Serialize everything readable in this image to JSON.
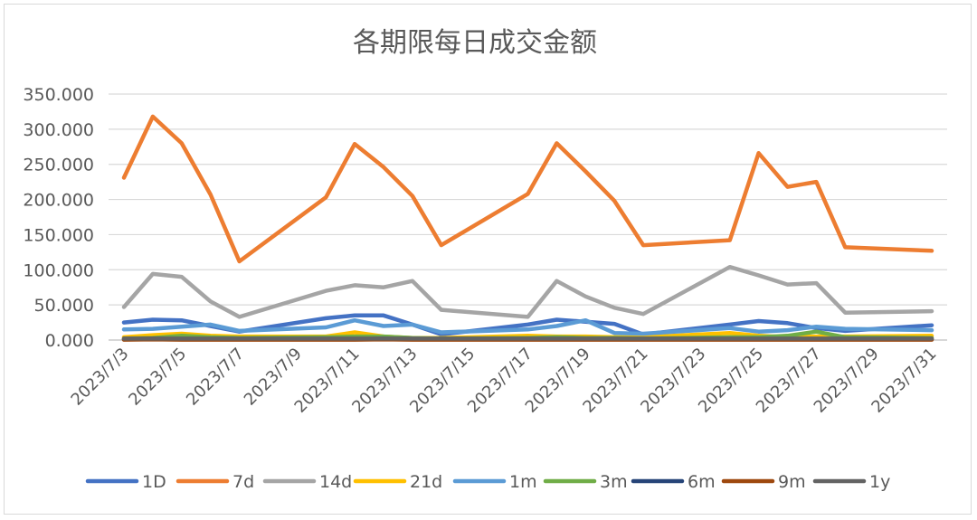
{
  "chart_data": {
    "type": "line",
    "title": "各期限每日成交金额",
    "xlabel": "",
    "ylabel": "",
    "ylim": [
      0,
      350
    ],
    "yticks": [
      0,
      50,
      100,
      150,
      200,
      250,
      300,
      350
    ],
    "ytick_labels": [
      "0.000",
      "50.000",
      "100.000",
      "150.000",
      "200.000",
      "250.000",
      "300.000",
      "350.000"
    ],
    "x": [
      "2023/7/3",
      "2023/7/4",
      "2023/7/5",
      "2023/7/6",
      "2023/7/7",
      "2023/7/10",
      "2023/7/11",
      "2023/7/12",
      "2023/7/13",
      "2023/7/14",
      "2023/7/17",
      "2023/7/18",
      "2023/7/19",
      "2023/7/20",
      "2023/7/21",
      "2023/7/24",
      "2023/7/25",
      "2023/7/26",
      "2023/7/27",
      "2023/7/28",
      "2023/7/31"
    ],
    "xtick_labels": [
      "2023/7/3",
      "2023/7/5",
      "2023/7/7",
      "2023/7/9",
      "2023/7/11",
      "2023/7/13",
      "2023/7/15",
      "2023/7/17",
      "2023/7/19",
      "2023/7/21",
      "2023/7/23",
      "2023/7/25",
      "2023/7/27",
      "2023/7/29",
      "2023/7/31"
    ],
    "legend_position": "bottom",
    "grid": true,
    "series": [
      {
        "name": "1D",
        "color": "#4472C4",
        "values": [
          25,
          29,
          28,
          20,
          12,
          31,
          35,
          35,
          22,
          8,
          22,
          29,
          26,
          23,
          8,
          22,
          27,
          24,
          17,
          13,
          21
        ]
      },
      {
        "name": "7d",
        "color": "#ED7D31",
        "values": [
          231,
          318,
          280,
          207,
          112,
          203,
          279,
          246,
          205,
          135,
          208,
          280,
          240,
          198,
          135,
          142,
          266,
          218,
          225,
          132,
          127
        ]
      },
      {
        "name": "14d",
        "color": "#A5A5A5",
        "values": [
          47,
          94,
          90,
          55,
          33,
          70,
          78,
          75,
          84,
          43,
          33,
          84,
          62,
          46,
          37,
          104,
          92,
          79,
          81,
          39,
          41
        ]
      },
      {
        "name": "21d",
        "color": "#FFC000",
        "values": [
          4,
          7,
          9,
          6,
          5,
          5,
          11,
          5,
          3,
          3,
          6,
          5,
          5,
          4,
          4,
          10,
          6,
          4,
          5,
          5,
          6
        ]
      },
      {
        "name": "1m",
        "color": "#5B9BD5",
        "values": [
          15,
          16,
          19,
          22,
          13,
          18,
          28,
          20,
          22,
          11,
          15,
          20,
          28,
          10,
          9,
          17,
          12,
          14,
          19,
          16,
          14
        ]
      },
      {
        "name": "3m",
        "color": "#70AD47",
        "values": [
          2,
          3,
          6,
          4,
          3,
          4,
          5,
          5,
          3,
          2,
          3,
          4,
          3,
          3,
          2,
          4,
          4,
          6,
          12,
          4,
          3
        ]
      },
      {
        "name": "6m",
        "color": "#264478",
        "values": [
          1,
          2,
          1,
          1,
          1,
          1,
          1,
          2,
          1,
          1,
          1,
          1,
          1,
          1,
          1,
          1,
          1,
          1,
          1,
          1,
          1
        ]
      },
      {
        "name": "9m",
        "color": "#9E480E",
        "values": [
          0.5,
          1,
          0.5,
          0.5,
          0.5,
          0.5,
          0.5,
          1,
          0.5,
          0.5,
          0.5,
          0.5,
          0.5,
          0.5,
          0.5,
          0.5,
          0.5,
          0.5,
          0.5,
          0.5,
          0.5
        ]
      },
      {
        "name": "1y",
        "color": "#636363",
        "values": [
          2,
          2,
          2,
          2,
          2,
          2,
          2,
          2,
          2,
          2,
          2,
          2,
          2,
          2,
          2,
          2,
          2,
          2,
          2,
          2,
          2
        ]
      }
    ]
  }
}
